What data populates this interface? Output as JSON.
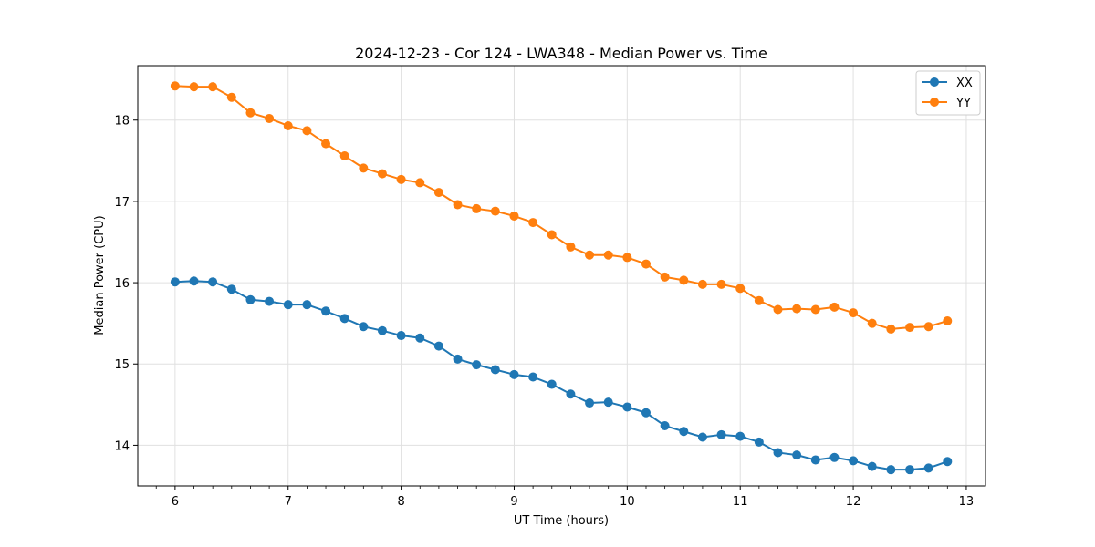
{
  "chart_data": {
    "type": "line",
    "title": "2024-12-23 - Cor 124 - LWA348 - Median Power vs. Time",
    "xlabel": "UT Time (hours)",
    "ylabel": "Median Power (CPU)",
    "xlim": [
      5.67,
      13.17
    ],
    "ylim": [
      13.5,
      18.67
    ],
    "xticks": [
      6,
      7,
      8,
      9,
      10,
      11,
      12,
      13
    ],
    "yticks": [
      14,
      15,
      16,
      17,
      18
    ],
    "grid": true,
    "legend_position": "top-right",
    "x": [
      6.0,
      6.1667,
      6.3333,
      6.5,
      6.6667,
      6.8333,
      7.0,
      7.1667,
      7.3333,
      7.5,
      7.6667,
      7.8333,
      8.0,
      8.1667,
      8.3333,
      8.5,
      8.6667,
      8.8333,
      9.0,
      9.1667,
      9.3333,
      9.5,
      9.6667,
      9.8333,
      10.0,
      10.1667,
      10.3333,
      10.5,
      10.6667,
      10.8333,
      11.0,
      11.1667,
      11.3333,
      11.5,
      11.6667,
      11.8333,
      12.0,
      12.1667,
      12.3333,
      12.5,
      12.6667,
      12.8333
    ],
    "series": [
      {
        "name": "XX",
        "color": "#1f77b4",
        "values": [
          16.01,
          16.02,
          16.01,
          15.92,
          15.79,
          15.77,
          15.73,
          15.73,
          15.65,
          15.56,
          15.46,
          15.41,
          15.35,
          15.32,
          15.22,
          15.06,
          14.99,
          14.93,
          14.87,
          14.84,
          14.75,
          14.63,
          14.52,
          14.53,
          14.47,
          14.4,
          14.24,
          14.17,
          14.1,
          14.13,
          14.11,
          14.04,
          13.91,
          13.88,
          13.82,
          13.85,
          13.81,
          13.74,
          13.7,
          13.7,
          13.72,
          13.8
        ]
      },
      {
        "name": "YY",
        "color": "#ff7f0e",
        "values": [
          18.42,
          18.41,
          18.41,
          18.28,
          18.09,
          18.02,
          17.93,
          17.87,
          17.71,
          17.56,
          17.41,
          17.34,
          17.27,
          17.23,
          17.11,
          16.96,
          16.91,
          16.88,
          16.82,
          16.74,
          16.59,
          16.44,
          16.34,
          16.34,
          16.31,
          16.23,
          16.07,
          16.03,
          15.98,
          15.98,
          15.93,
          15.78,
          15.67,
          15.68,
          15.67,
          15.7,
          15.63,
          15.5,
          15.43,
          15.45,
          15.46,
          15.53
        ]
      }
    ]
  }
}
